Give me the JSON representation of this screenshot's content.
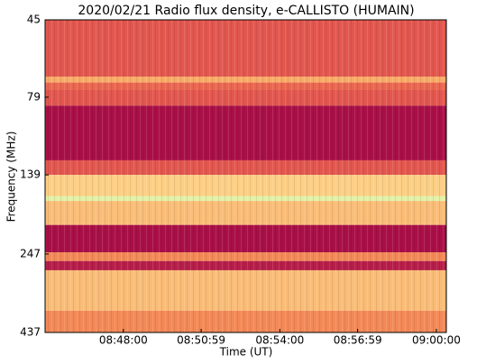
{
  "chart_data": {
    "type": "spectrogram",
    "title": "2020/02/21  Radio flux density, e-CALLISTO (HUMAIN)",
    "xlabel": "Time (UT)",
    "ylabel": "Frequency (MHz)",
    "xlim": [
      "08:45:00",
      "09:00:23"
    ],
    "xticks": [
      "08:48:00",
      "08:50:59",
      "08:54:00",
      "08:56:59",
      "09:00:00"
    ],
    "ylim": [
      45,
      437
    ],
    "yticks": [
      45,
      79,
      139,
      247,
      437
    ],
    "ylog": true,
    "yinverted": true,
    "row_edges": [
      45,
      68,
      71,
      75,
      84,
      125,
      139,
      162,
      168,
      200,
      244,
      260,
      278,
      373,
      437
    ],
    "values": [
      0.3,
      0.55,
      0.35,
      0.3,
      0.05,
      0.3,
      0.65,
      0.85,
      0.6,
      0.05,
      0.45,
      0.1,
      0.6,
      0.45
    ],
    "colormap": [
      "#9b0043",
      "#c8324f",
      "#e8604f",
      "#f79a5a",
      "#fcd58a",
      "#e9f3a6",
      "#a8dba4"
    ]
  }
}
